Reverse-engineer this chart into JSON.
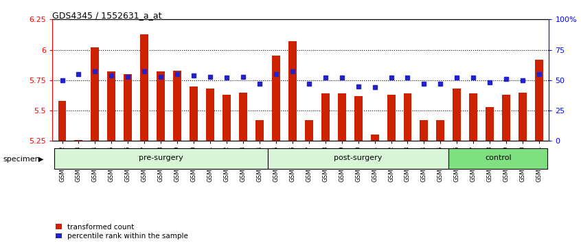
{
  "title": "GDS4345 / 1552631_a_at",
  "categories": [
    "GSM842012",
    "GSM842013",
    "GSM842014",
    "GSM842015",
    "GSM842016",
    "GSM842017",
    "GSM842018",
    "GSM842019",
    "GSM842020",
    "GSM842021",
    "GSM842022",
    "GSM842023",
    "GSM842024",
    "GSM842025",
    "GSM842026",
    "GSM842027",
    "GSM842028",
    "GSM842029",
    "GSM842030",
    "GSM842031",
    "GSM842032",
    "GSM842033",
    "GSM842034",
    "GSM842035",
    "GSM842036",
    "GSM842037",
    "GSM842038",
    "GSM842039",
    "GSM842040",
    "GSM842041"
  ],
  "bar_values": [
    5.58,
    5.26,
    6.02,
    5.82,
    5.8,
    6.13,
    5.82,
    5.83,
    5.7,
    5.68,
    5.63,
    5.65,
    5.42,
    5.95,
    6.07,
    5.42,
    5.64,
    5.64,
    5.62,
    5.3,
    5.63,
    5.64,
    5.42,
    5.42,
    5.68,
    5.64,
    5.53,
    5.63,
    5.65,
    5.92
  ],
  "percentile_values": [
    50,
    55,
    57,
    54,
    53,
    57,
    53,
    55,
    54,
    53,
    52,
    53,
    47,
    55,
    57,
    47,
    52,
    52,
    45,
    44,
    52,
    52,
    47,
    47,
    52,
    52,
    48,
    51,
    50,
    55
  ],
  "group_labels": [
    "pre-surgery",
    "post-surgery",
    "control"
  ],
  "group_ranges": [
    [
      0,
      13
    ],
    [
      13,
      24
    ],
    [
      24,
      30
    ]
  ],
  "group_colors_light": [
    "#d8f5d8",
    "#d8f5d8",
    "#7ee07e"
  ],
  "ylim_left": [
    5.25,
    6.25
  ],
  "ylim_right": [
    0,
    100
  ],
  "yticks_left": [
    5.25,
    5.5,
    5.75,
    6.0,
    6.25
  ],
  "ytick_labels_left": [
    "5.25",
    "5.5",
    "5.75",
    "6",
    "6.25"
  ],
  "yticks_right": [
    0,
    25,
    50,
    75,
    100
  ],
  "ytick_labels_right": [
    "0",
    "25",
    "50",
    "75",
    "100%"
  ],
  "hlines": [
    5.5,
    5.75,
    6.0
  ],
  "bar_color": "#cc2200",
  "percentile_color": "#2222cc",
  "bar_width": 0.5,
  "plot_bg": "#ffffff",
  "legend_items": [
    "transformed count",
    "percentile rank within the sample"
  ]
}
